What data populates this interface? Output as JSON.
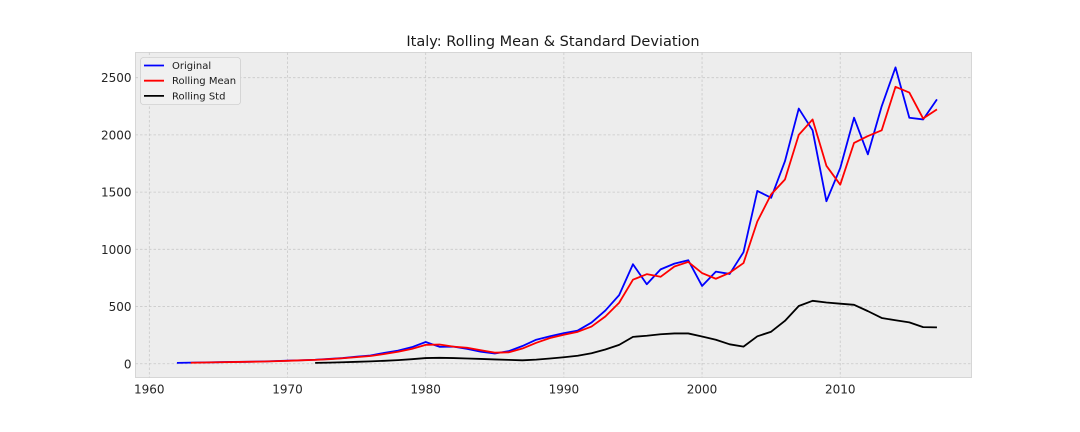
{
  "chart_data": {
    "type": "line",
    "title": "Italy: Rolling Mean & Standard Deviation",
    "xlabel": "",
    "ylabel": "",
    "xlim": [
      1959,
      2019.5
    ],
    "ylim": [
      -120,
      2720
    ],
    "xticks": [
      1960,
      1970,
      1980,
      1990,
      2000,
      2010
    ],
    "yticks": [
      0,
      500,
      1000,
      1500,
      2000,
      2500
    ],
    "grid": true,
    "legend_position": "top-left",
    "series": [
      {
        "name": "Original",
        "color": "#0000ff",
        "points": [
          [
            1962,
            8
          ],
          [
            1963,
            10
          ],
          [
            1964,
            12
          ],
          [
            1965,
            14
          ],
          [
            1966,
            16
          ],
          [
            1967,
            17
          ],
          [
            1968,
            20
          ],
          [
            1969,
            23
          ],
          [
            1970,
            27
          ],
          [
            1971,
            31
          ],
          [
            1972,
            35
          ],
          [
            1973,
            42
          ],
          [
            1974,
            50
          ],
          [
            1975,
            62
          ],
          [
            1976,
            72
          ],
          [
            1977,
            95
          ],
          [
            1978,
            115
          ],
          [
            1979,
            145
          ],
          [
            1980,
            190
          ],
          [
            1981,
            148
          ],
          [
            1982,
            150
          ],
          [
            1983,
            130
          ],
          [
            1984,
            105
          ],
          [
            1985,
            90
          ],
          [
            1986,
            110
          ],
          [
            1987,
            155
          ],
          [
            1988,
            210
          ],
          [
            1989,
            240
          ],
          [
            1990,
            268
          ],
          [
            1991,
            290
          ],
          [
            1992,
            360
          ],
          [
            1993,
            465
          ],
          [
            1994,
            600
          ],
          [
            1995,
            870
          ],
          [
            1996,
            695
          ],
          [
            1997,
            825
          ],
          [
            1998,
            875
          ],
          [
            1999,
            905
          ],
          [
            2000,
            680
          ],
          [
            2001,
            805
          ],
          [
            2002,
            785
          ],
          [
            2003,
            975
          ],
          [
            2004,
            1510
          ],
          [
            2005,
            1450
          ],
          [
            2006,
            1770
          ],
          [
            2007,
            2230
          ],
          [
            2008,
            2040
          ],
          [
            2009,
            1420
          ],
          [
            2010,
            1710
          ],
          [
            2011,
            2150
          ],
          [
            2012,
            1830
          ],
          [
            2013,
            2250
          ],
          [
            2014,
            2590
          ],
          [
            2015,
            2150
          ],
          [
            2016,
            2135
          ],
          [
            2017,
            2310
          ]
        ]
      },
      {
        "name": "Rolling Mean",
        "color": "#ff0000",
        "points": [
          [
            1963,
            9
          ],
          [
            1964,
            11
          ],
          [
            1965,
            13
          ],
          [
            1966,
            15
          ],
          [
            1967,
            17
          ],
          [
            1968,
            19
          ],
          [
            1969,
            22
          ],
          [
            1970,
            26
          ],
          [
            1971,
            30
          ],
          [
            1972,
            34
          ],
          [
            1973,
            40
          ],
          [
            1974,
            48
          ],
          [
            1975,
            58
          ],
          [
            1976,
            68
          ],
          [
            1977,
            85
          ],
          [
            1978,
            105
          ],
          [
            1979,
            130
          ],
          [
            1980,
            165
          ],
          [
            1981,
            168
          ],
          [
            1982,
            150
          ],
          [
            1983,
            140
          ],
          [
            1984,
            118
          ],
          [
            1985,
            97
          ],
          [
            1986,
            100
          ],
          [
            1987,
            133
          ],
          [
            1988,
            183
          ],
          [
            1989,
            225
          ],
          [
            1990,
            254
          ],
          [
            1991,
            279
          ],
          [
            1992,
            325
          ],
          [
            1993,
            413
          ],
          [
            1994,
            533
          ],
          [
            1995,
            735
          ],
          [
            1996,
            783
          ],
          [
            1997,
            760
          ],
          [
            1998,
            850
          ],
          [
            1999,
            890
          ],
          [
            2000,
            793
          ],
          [
            2001,
            743
          ],
          [
            2002,
            795
          ],
          [
            2003,
            880
          ],
          [
            2004,
            1243
          ],
          [
            2005,
            1480
          ],
          [
            2006,
            1610
          ],
          [
            2007,
            2000
          ],
          [
            2008,
            2135
          ],
          [
            2009,
            1730
          ],
          [
            2010,
            1565
          ],
          [
            2011,
            1930
          ],
          [
            2012,
            1990
          ],
          [
            2013,
            2040
          ],
          [
            2014,
            2420
          ],
          [
            2015,
            2370
          ],
          [
            2016,
            2143
          ],
          [
            2017,
            2223
          ]
        ]
      },
      {
        "name": "Rolling Std",
        "color": "#000000",
        "points": [
          [
            1972,
            8
          ],
          [
            1973,
            10
          ],
          [
            1974,
            13
          ],
          [
            1975,
            17
          ],
          [
            1976,
            21
          ],
          [
            1977,
            26
          ],
          [
            1978,
            32
          ],
          [
            1979,
            40
          ],
          [
            1980,
            50
          ],
          [
            1981,
            52
          ],
          [
            1982,
            50
          ],
          [
            1983,
            46
          ],
          [
            1984,
            42
          ],
          [
            1985,
            38
          ],
          [
            1986,
            34
          ],
          [
            1987,
            30
          ],
          [
            1988,
            36
          ],
          [
            1989,
            46
          ],
          [
            1990,
            57
          ],
          [
            1991,
            70
          ],
          [
            1992,
            92
          ],
          [
            1993,
            125
          ],
          [
            1994,
            165
          ],
          [
            1995,
            235
          ],
          [
            1996,
            245
          ],
          [
            1997,
            258
          ],
          [
            1998,
            265
          ],
          [
            1999,
            265
          ],
          [
            2000,
            238
          ],
          [
            2001,
            210
          ],
          [
            2002,
            170
          ],
          [
            2003,
            150
          ],
          [
            2004,
            240
          ],
          [
            2005,
            280
          ],
          [
            2006,
            375
          ],
          [
            2007,
            505
          ],
          [
            2008,
            550
          ],
          [
            2009,
            535
          ],
          [
            2010,
            525
          ],
          [
            2011,
            515
          ],
          [
            2012,
            460
          ],
          [
            2013,
            400
          ],
          [
            2014,
            380
          ],
          [
            2015,
            362
          ],
          [
            2016,
            320
          ],
          [
            2017,
            318
          ]
        ]
      }
    ]
  }
}
